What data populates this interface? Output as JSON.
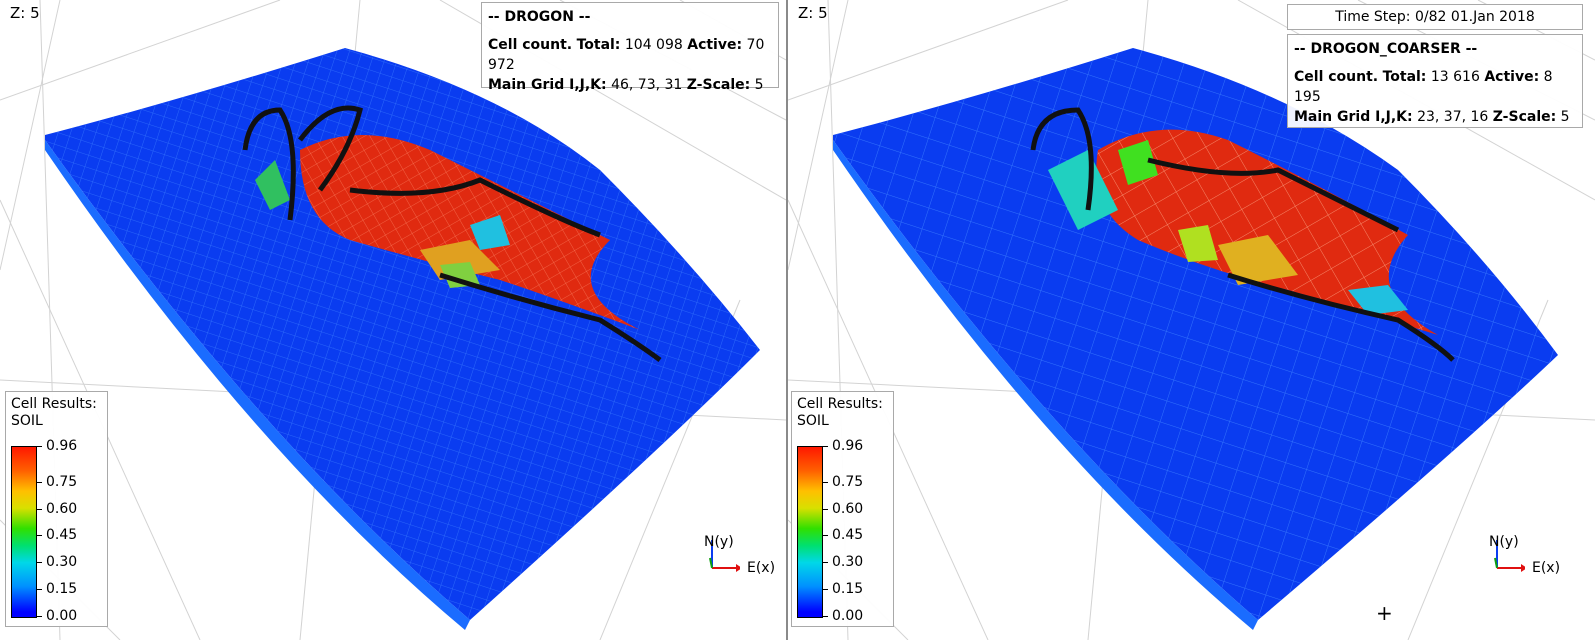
{
  "left_view": {
    "z_label": "Z: 5",
    "info": {
      "header": "-- DROGON --",
      "cell_count_label": "Cell count.",
      "total_label": "Total:",
      "total_value": "104 098",
      "active_label": "Active:",
      "active_value": "70 972",
      "main_grid_label": "Main Grid I,J,K:",
      "main_grid_value": "46, 73, 31",
      "zscale_label": "Z-Scale:",
      "zscale_value": "5"
    },
    "legend": {
      "title_line1": "Cell Results:",
      "title_line2": "SOIL",
      "ticks": [
        "0.96",
        "0.75",
        "0.60",
        "0.45",
        "0.30",
        "0.15",
        "0.00"
      ]
    },
    "axes": {
      "north": "N(y)",
      "east": "E(x)"
    }
  },
  "right_view": {
    "z_label": "Z: 5",
    "time_step": "Time Step: 0/82 01.Jan 2018",
    "info": {
      "header": "-- DROGON_COARSER --",
      "cell_count_label": "Cell count.",
      "total_label": "Total:",
      "total_value": "13 616",
      "active_label": "Active:",
      "active_value": "8 195",
      "main_grid_label": "Main Grid I,J,K:",
      "main_grid_value": "23, 37, 16",
      "zscale_label": "Z-Scale:",
      "zscale_value": "5"
    },
    "legend": {
      "title_line1": "Cell Results:",
      "title_line2": "SOIL",
      "ticks": [
        "0.96",
        "0.75",
        "0.60",
        "0.45",
        "0.30",
        "0.15",
        "0.00"
      ]
    },
    "axes": {
      "north": "N(y)",
      "east": "E(x)"
    }
  },
  "colors": {
    "grid_blue": "#0a3cf0",
    "soil_high": "#ff2000",
    "soil_mid": "#f0b000",
    "soil_low": "#20e0e0"
  }
}
